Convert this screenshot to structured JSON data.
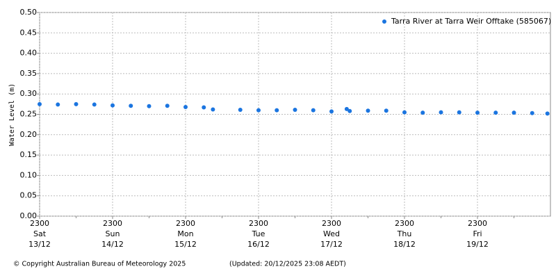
{
  "chart_data": {
    "type": "scatter",
    "y_label": "Water Level (m)",
    "series": [
      {
        "name": "Tarra River at Tarra Weir Offtake (585067)",
        "color": "#1b75e0",
        "x": [
          0,
          6,
          12,
          18,
          24,
          30,
          36,
          42,
          48,
          54,
          57,
          66,
          72,
          78,
          84,
          90,
          96,
          101,
          102,
          108,
          114,
          120,
          126,
          132,
          138,
          144,
          150,
          156,
          162,
          167
        ],
        "values": [
          0.275,
          0.274,
          0.275,
          0.274,
          0.272,
          0.271,
          0.27,
          0.271,
          0.268,
          0.267,
          0.262,
          0.261,
          0.26,
          0.26,
          0.261,
          0.26,
          0.257,
          0.263,
          0.258,
          0.259,
          0.259,
          0.255,
          0.254,
          0.255,
          0.255,
          0.254,
          0.254,
          0.254,
          0.253,
          0.252
        ]
      }
    ],
    "xlim": [
      0,
      168
    ],
    "xticks": [
      {
        "value": 0,
        "label": [
          "2300",
          "Sat",
          "13/12"
        ]
      },
      {
        "value": 24,
        "label": [
          "2300",
          "Sun",
          "14/12"
        ]
      },
      {
        "value": 48,
        "label": [
          "2300",
          "Mon",
          "15/12"
        ]
      },
      {
        "value": 72,
        "label": [
          "2300",
          "Tue",
          "16/12"
        ]
      },
      {
        "value": 96,
        "label": [
          "2300",
          "Wed",
          "17/12"
        ]
      },
      {
        "value": 120,
        "label": [
          "2300",
          "Thu",
          "18/12"
        ]
      },
      {
        "value": 144,
        "label": [
          "2300",
          "Fri",
          "19/12"
        ]
      }
    ],
    "ylim": [
      0,
      0.5
    ],
    "yticks": [
      {
        "value": 0,
        "label": "0.00"
      },
      {
        "value": 0.05,
        "label": "0.05"
      },
      {
        "value": 0.1,
        "label": "0.10"
      },
      {
        "value": 0.15,
        "label": "0.15"
      },
      {
        "value": 0.2,
        "label": "0.20"
      },
      {
        "value": 0.25,
        "label": "0.25"
      },
      {
        "value": 0.3,
        "label": "0.30"
      },
      {
        "value": 0.35,
        "label": "0.35"
      },
      {
        "value": 0.4,
        "label": "0.40"
      },
      {
        "value": 0.45,
        "label": "0.45"
      },
      {
        "value": 0.5,
        "label": "0.50"
      }
    ],
    "grid": true,
    "legend": "top-right",
    "footer": {
      "copyright": "© Copyright Australian Bureau of Meteorology 2025",
      "updated": "(Updated: 20/12/2025 23:08 AEDT)"
    }
  }
}
